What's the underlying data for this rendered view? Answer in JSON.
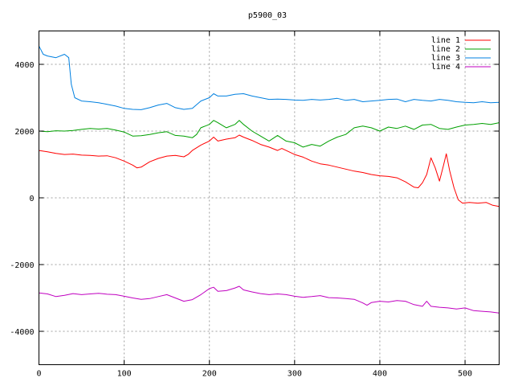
{
  "chart_data": {
    "type": "line",
    "title": "p5900_03",
    "xlabel": "",
    "ylabel": "",
    "xlim": [
      0,
      540
    ],
    "ylim": [
      -5000,
      5000
    ],
    "xticks": [
      0,
      100,
      200,
      300,
      400,
      500
    ],
    "yticks": [
      -4000,
      -2000,
      0,
      2000,
      4000
    ],
    "grid": true,
    "legend_position": "top-right",
    "series": [
      {
        "name": "line 1",
        "color": "#ff0000",
        "points": [
          [
            0,
            1420
          ],
          [
            10,
            1380
          ],
          [
            20,
            1330
          ],
          [
            30,
            1300
          ],
          [
            40,
            1310
          ],
          [
            50,
            1280
          ],
          [
            60,
            1270
          ],
          [
            70,
            1250
          ],
          [
            80,
            1260
          ],
          [
            90,
            1200
          ],
          [
            100,
            1100
          ],
          [
            110,
            980
          ],
          [
            115,
            900
          ],
          [
            120,
            920
          ],
          [
            130,
            1080
          ],
          [
            140,
            1180
          ],
          [
            150,
            1250
          ],
          [
            160,
            1270
          ],
          [
            170,
            1230
          ],
          [
            175,
            1300
          ],
          [
            180,
            1420
          ],
          [
            190,
            1580
          ],
          [
            200,
            1700
          ],
          [
            205,
            1820
          ],
          [
            210,
            1700
          ],
          [
            220,
            1760
          ],
          [
            230,
            1800
          ],
          [
            235,
            1880
          ],
          [
            240,
            1820
          ],
          [
            250,
            1720
          ],
          [
            260,
            1600
          ],
          [
            270,
            1520
          ],
          [
            280,
            1420
          ],
          [
            285,
            1480
          ],
          [
            290,
            1420
          ],
          [
            300,
            1300
          ],
          [
            310,
            1220
          ],
          [
            320,
            1100
          ],
          [
            330,
            1020
          ],
          [
            340,
            980
          ],
          [
            350,
            920
          ],
          [
            360,
            860
          ],
          [
            370,
            800
          ],
          [
            380,
            760
          ],
          [
            390,
            700
          ],
          [
            400,
            660
          ],
          [
            410,
            640
          ],
          [
            420,
            600
          ],
          [
            430,
            480
          ],
          [
            440,
            320
          ],
          [
            445,
            300
          ],
          [
            450,
            450
          ],
          [
            455,
            700
          ],
          [
            460,
            1200
          ],
          [
            465,
            900
          ],
          [
            470,
            500
          ],
          [
            475,
            1000
          ],
          [
            478,
            1320
          ],
          [
            482,
            800
          ],
          [
            487,
            300
          ],
          [
            492,
            -60
          ],
          [
            497,
            -160
          ],
          [
            505,
            -140
          ],
          [
            515,
            -160
          ],
          [
            525,
            -140
          ],
          [
            532,
            -220
          ],
          [
            540,
            -260
          ]
        ]
      },
      {
        "name": "line 2",
        "color": "#00a000",
        "points": [
          [
            0,
            2000
          ],
          [
            10,
            1980
          ],
          [
            20,
            2010
          ],
          [
            30,
            2000
          ],
          [
            40,
            2020
          ],
          [
            50,
            2050
          ],
          [
            60,
            2080
          ],
          [
            70,
            2060
          ],
          [
            80,
            2080
          ],
          [
            90,
            2030
          ],
          [
            100,
            1970
          ],
          [
            110,
            1850
          ],
          [
            120,
            1860
          ],
          [
            130,
            1900
          ],
          [
            140,
            1950
          ],
          [
            150,
            1980
          ],
          [
            160,
            1870
          ],
          [
            170,
            1850
          ],
          [
            180,
            1800
          ],
          [
            185,
            1900
          ],
          [
            190,
            2100
          ],
          [
            200,
            2200
          ],
          [
            205,
            2320
          ],
          [
            210,
            2250
          ],
          [
            220,
            2100
          ],
          [
            230,
            2200
          ],
          [
            235,
            2320
          ],
          [
            240,
            2200
          ],
          [
            250,
            2000
          ],
          [
            260,
            1850
          ],
          [
            270,
            1700
          ],
          [
            280,
            1870
          ],
          [
            290,
            1700
          ],
          [
            300,
            1650
          ],
          [
            310,
            1520
          ],
          [
            320,
            1600
          ],
          [
            330,
            1550
          ],
          [
            340,
            1700
          ],
          [
            350,
            1820
          ],
          [
            360,
            1900
          ],
          [
            370,
            2100
          ],
          [
            380,
            2150
          ],
          [
            390,
            2100
          ],
          [
            400,
            2000
          ],
          [
            410,
            2120
          ],
          [
            420,
            2080
          ],
          [
            430,
            2150
          ],
          [
            440,
            2050
          ],
          [
            450,
            2180
          ],
          [
            460,
            2200
          ],
          [
            470,
            2080
          ],
          [
            480,
            2050
          ],
          [
            490,
            2120
          ],
          [
            500,
            2180
          ],
          [
            510,
            2200
          ],
          [
            520,
            2230
          ],
          [
            530,
            2200
          ],
          [
            540,
            2250
          ]
        ]
      },
      {
        "name": "line 3",
        "color": "#0080e0",
        "points": [
          [
            0,
            4550
          ],
          [
            5,
            4300
          ],
          [
            10,
            4250
          ],
          [
            20,
            4200
          ],
          [
            30,
            4300
          ],
          [
            35,
            4200
          ],
          [
            38,
            3400
          ],
          [
            42,
            3000
          ],
          [
            50,
            2900
          ],
          [
            60,
            2880
          ],
          [
            70,
            2850
          ],
          [
            80,
            2800
          ],
          [
            90,
            2750
          ],
          [
            100,
            2680
          ],
          [
            110,
            2650
          ],
          [
            120,
            2640
          ],
          [
            130,
            2700
          ],
          [
            140,
            2780
          ],
          [
            150,
            2830
          ],
          [
            160,
            2700
          ],
          [
            170,
            2650
          ],
          [
            180,
            2680
          ],
          [
            190,
            2900
          ],
          [
            200,
            3000
          ],
          [
            205,
            3120
          ],
          [
            210,
            3050
          ],
          [
            220,
            3050
          ],
          [
            230,
            3100
          ],
          [
            240,
            3120
          ],
          [
            250,
            3050
          ],
          [
            260,
            3000
          ],
          [
            270,
            2950
          ],
          [
            280,
            2960
          ],
          [
            290,
            2950
          ],
          [
            300,
            2930
          ],
          [
            310,
            2920
          ],
          [
            320,
            2950
          ],
          [
            330,
            2930
          ],
          [
            340,
            2950
          ],
          [
            350,
            2980
          ],
          [
            360,
            2920
          ],
          [
            370,
            2950
          ],
          [
            380,
            2880
          ],
          [
            390,
            2900
          ],
          [
            400,
            2920
          ],
          [
            410,
            2950
          ],
          [
            420,
            2960
          ],
          [
            430,
            2880
          ],
          [
            440,
            2950
          ],
          [
            450,
            2920
          ],
          [
            460,
            2900
          ],
          [
            470,
            2950
          ],
          [
            480,
            2920
          ],
          [
            490,
            2880
          ],
          [
            500,
            2860
          ],
          [
            510,
            2850
          ],
          [
            520,
            2880
          ],
          [
            530,
            2850
          ],
          [
            540,
            2860
          ]
        ]
      },
      {
        "name": "line 4",
        "color": "#c000c0",
        "points": [
          [
            0,
            -2850
          ],
          [
            10,
            -2880
          ],
          [
            20,
            -2960
          ],
          [
            30,
            -2920
          ],
          [
            40,
            -2870
          ],
          [
            50,
            -2900
          ],
          [
            60,
            -2880
          ],
          [
            70,
            -2860
          ],
          [
            80,
            -2890
          ],
          [
            90,
            -2900
          ],
          [
            100,
            -2950
          ],
          [
            110,
            -3000
          ],
          [
            120,
            -3040
          ],
          [
            130,
            -3020
          ],
          [
            140,
            -2960
          ],
          [
            150,
            -2900
          ],
          [
            160,
            -3000
          ],
          [
            170,
            -3100
          ],
          [
            180,
            -3050
          ],
          [
            190,
            -2900
          ],
          [
            200,
            -2720
          ],
          [
            205,
            -2680
          ],
          [
            210,
            -2800
          ],
          [
            220,
            -2780
          ],
          [
            230,
            -2700
          ],
          [
            235,
            -2650
          ],
          [
            240,
            -2760
          ],
          [
            250,
            -2820
          ],
          [
            260,
            -2870
          ],
          [
            270,
            -2900
          ],
          [
            280,
            -2880
          ],
          [
            290,
            -2900
          ],
          [
            300,
            -2950
          ],
          [
            310,
            -2980
          ],
          [
            320,
            -2960
          ],
          [
            330,
            -2930
          ],
          [
            340,
            -2990
          ],
          [
            350,
            -3000
          ],
          [
            360,
            -3020
          ],
          [
            370,
            -3040
          ],
          [
            380,
            -3150
          ],
          [
            385,
            -3220
          ],
          [
            390,
            -3140
          ],
          [
            400,
            -3100
          ],
          [
            410,
            -3120
          ],
          [
            420,
            -3080
          ],
          [
            430,
            -3100
          ],
          [
            440,
            -3200
          ],
          [
            450,
            -3250
          ],
          [
            455,
            -3100
          ],
          [
            460,
            -3250
          ],
          [
            470,
            -3280
          ],
          [
            480,
            -3300
          ],
          [
            490,
            -3330
          ],
          [
            500,
            -3300
          ],
          [
            510,
            -3380
          ],
          [
            520,
            -3400
          ],
          [
            530,
            -3420
          ],
          [
            540,
            -3450
          ]
        ]
      }
    ]
  }
}
